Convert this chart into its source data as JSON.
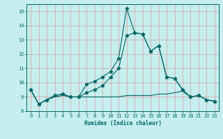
{
  "xlabel": "Humidex (Indice chaleur)",
  "background_color": "#c6eeee",
  "grid_color": "#d4aaaa",
  "line_color": "#006666",
  "xlim": [
    -0.5,
    23.5
  ],
  "ylim": [
    8.0,
    15.5
  ],
  "x": [
    0,
    1,
    2,
    3,
    4,
    5,
    6,
    7,
    8,
    9,
    10,
    11,
    12,
    13,
    14,
    15,
    16,
    17,
    18,
    19,
    20,
    21,
    22,
    23
  ],
  "line_main": [
    9.5,
    8.5,
    8.8,
    9.1,
    9.2,
    9.0,
    9.0,
    9.9,
    10.1,
    10.4,
    10.8,
    11.7,
    15.2,
    13.5,
    13.4,
    12.2,
    12.6,
    10.4,
    10.3,
    9.5,
    9.0,
    9.1,
    8.8,
    8.7
  ],
  "line_mid": [
    9.5,
    8.5,
    8.8,
    9.1,
    9.2,
    9.0,
    9.0,
    9.3,
    9.5,
    9.8,
    10.4,
    11.0,
    13.3,
    13.5,
    13.4,
    12.2,
    12.6,
    10.4,
    10.3,
    9.5,
    9.0,
    9.1,
    8.8,
    8.7
  ],
  "line_flat": [
    9.5,
    8.5,
    8.8,
    9.0,
    9.1,
    9.0,
    9.0,
    9.0,
    9.0,
    9.0,
    9.0,
    9.0,
    9.1,
    9.1,
    9.1,
    9.1,
    9.2,
    9.2,
    9.3,
    9.4,
    9.0,
    9.1,
    8.8,
    8.7
  ],
  "yticks": [
    8,
    9,
    10,
    11,
    12,
    13,
    14,
    15
  ],
  "xticks": [
    0,
    1,
    2,
    3,
    4,
    5,
    6,
    7,
    8,
    9,
    10,
    11,
    12,
    13,
    14,
    15,
    16,
    17,
    18,
    19,
    20,
    21,
    22,
    23
  ]
}
